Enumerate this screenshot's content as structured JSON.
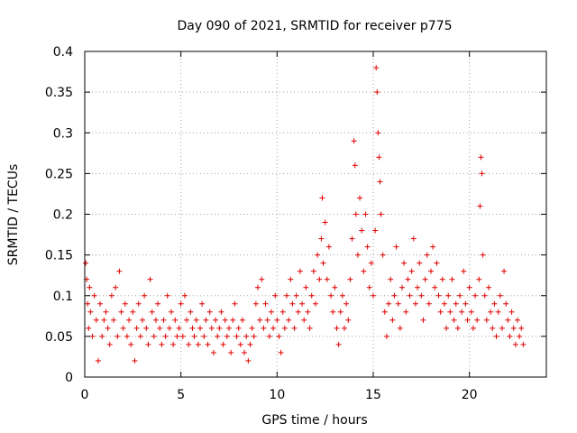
{
  "chart_data": {
    "type": "scatter",
    "title": "Day 090 of 2021, SRMTID for receiver p775",
    "xlabel": "GPS time / hours",
    "ylabel": "SRMTID / TECUs",
    "xlim": [
      0,
      24
    ],
    "ylim": [
      0,
      0.4
    ],
    "x_ticks": [
      "0",
      "5",
      "10",
      "15",
      "20"
    ],
    "y_ticks": [
      "0",
      "0.05",
      "0.1",
      "0.15",
      "0.2",
      "0.25",
      "0.3",
      "0.35",
      "0.4"
    ],
    "grid": true,
    "marker": "+",
    "marker_color": "#e00000",
    "series": [
      {
        "name": "SRMTID",
        "points": [
          [
            0.05,
            0.14
          ],
          [
            0.1,
            0.12
          ],
          [
            0.15,
            0.09
          ],
          [
            0.2,
            0.06
          ],
          [
            0.25,
            0.11
          ],
          [
            0.3,
            0.08
          ],
          [
            0.4,
            0.05
          ],
          [
            0.5,
            0.1
          ],
          [
            0.6,
            0.07
          ],
          [
            0.7,
            0.02
          ],
          [
            0.8,
            0.09
          ],
          [
            0.9,
            0.05
          ],
          [
            1.0,
            0.07
          ],
          [
            1.1,
            0.08
          ],
          [
            1.2,
            0.06
          ],
          [
            1.3,
            0.04
          ],
          [
            1.4,
            0.1
          ],
          [
            1.5,
            0.07
          ],
          [
            1.6,
            0.11
          ],
          [
            1.7,
            0.05
          ],
          [
            1.8,
            0.13
          ],
          [
            1.9,
            0.08
          ],
          [
            2.0,
            0.06
          ],
          [
            2.1,
            0.09
          ],
          [
            2.2,
            0.05
          ],
          [
            2.3,
            0.07
          ],
          [
            2.4,
            0.04
          ],
          [
            2.5,
            0.08
          ],
          [
            2.6,
            0.02
          ],
          [
            2.7,
            0.06
          ],
          [
            2.8,
            0.09
          ],
          [
            2.9,
            0.05
          ],
          [
            3.0,
            0.07
          ],
          [
            3.1,
            0.1
          ],
          [
            3.2,
            0.06
          ],
          [
            3.3,
            0.04
          ],
          [
            3.4,
            0.12
          ],
          [
            3.5,
            0.08
          ],
          [
            3.6,
            0.05
          ],
          [
            3.7,
            0.07
          ],
          [
            3.8,
            0.09
          ],
          [
            3.9,
            0.06
          ],
          [
            4.0,
            0.04
          ],
          [
            4.1,
            0.07
          ],
          [
            4.2,
            0.05
          ],
          [
            4.3,
            0.1
          ],
          [
            4.4,
            0.06
          ],
          [
            4.5,
            0.08
          ],
          [
            4.6,
            0.04
          ],
          [
            4.7,
            0.07
          ],
          [
            4.8,
            0.05
          ],
          [
            4.9,
            0.06
          ],
          [
            5.0,
            0.09
          ],
          [
            5.1,
            0.05
          ],
          [
            5.2,
            0.1
          ],
          [
            5.3,
            0.07
          ],
          [
            5.4,
            0.04
          ],
          [
            5.5,
            0.08
          ],
          [
            5.6,
            0.06
          ],
          [
            5.7,
            0.05
          ],
          [
            5.8,
            0.07
          ],
          [
            5.9,
            0.04
          ],
          [
            6.0,
            0.06
          ],
          [
            6.1,
            0.09
          ],
          [
            6.2,
            0.05
          ],
          [
            6.3,
            0.07
          ],
          [
            6.4,
            0.04
          ],
          [
            6.5,
            0.08
          ],
          [
            6.6,
            0.06
          ],
          [
            6.7,
            0.03
          ],
          [
            6.8,
            0.07
          ],
          [
            6.9,
            0.05
          ],
          [
            7.0,
            0.06
          ],
          [
            7.1,
            0.08
          ],
          [
            7.2,
            0.04
          ],
          [
            7.3,
            0.07
          ],
          [
            7.4,
            0.05
          ],
          [
            7.5,
            0.06
          ],
          [
            7.6,
            0.03
          ],
          [
            7.7,
            0.07
          ],
          [
            7.8,
            0.09
          ],
          [
            7.9,
            0.05
          ],
          [
            8.0,
            0.06
          ],
          [
            8.1,
            0.04
          ],
          [
            8.2,
            0.07
          ],
          [
            8.3,
            0.03
          ],
          [
            8.4,
            0.05
          ],
          [
            8.5,
            0.02
          ],
          [
            8.6,
            0.04
          ],
          [
            8.7,
            0.06
          ],
          [
            8.8,
            0.05
          ],
          [
            8.9,
            0.09
          ],
          [
            9.0,
            0.11
          ],
          [
            9.1,
            0.07
          ],
          [
            9.2,
            0.12
          ],
          [
            9.3,
            0.06
          ],
          [
            9.4,
            0.09
          ],
          [
            9.5,
            0.07
          ],
          [
            9.6,
            0.05
          ],
          [
            9.7,
            0.08
          ],
          [
            9.8,
            0.06
          ],
          [
            9.9,
            0.1
          ],
          [
            10.0,
            0.07
          ],
          [
            10.1,
            0.05
          ],
          [
            10.2,
            0.03
          ],
          [
            10.3,
            0.08
          ],
          [
            10.4,
            0.06
          ],
          [
            10.5,
            0.1
          ],
          [
            10.6,
            0.07
          ],
          [
            10.7,
            0.12
          ],
          [
            10.8,
            0.09
          ],
          [
            10.9,
            0.06
          ],
          [
            11.0,
            0.1
          ],
          [
            11.1,
            0.08
          ],
          [
            11.2,
            0.13
          ],
          [
            11.3,
            0.09
          ],
          [
            11.4,
            0.07
          ],
          [
            11.5,
            0.11
          ],
          [
            11.6,
            0.08
          ],
          [
            11.7,
            0.06
          ],
          [
            11.8,
            0.1
          ],
          [
            11.9,
            0.13
          ],
          [
            12.0,
            0.09
          ],
          [
            12.1,
            0.15
          ],
          [
            12.2,
            0.12
          ],
          [
            12.3,
            0.17
          ],
          [
            12.35,
            0.22
          ],
          [
            12.4,
            0.14
          ],
          [
            12.5,
            0.19
          ],
          [
            12.6,
            0.12
          ],
          [
            12.7,
            0.16
          ],
          [
            12.8,
            0.1
          ],
          [
            12.9,
            0.08
          ],
          [
            13.0,
            0.11
          ],
          [
            13.1,
            0.06
          ],
          [
            13.2,
            0.04
          ],
          [
            13.3,
            0.08
          ],
          [
            13.4,
            0.1
          ],
          [
            13.5,
            0.06
          ],
          [
            13.6,
            0.09
          ],
          [
            13.7,
            0.07
          ],
          [
            13.8,
            0.12
          ],
          [
            13.9,
            0.17
          ],
          [
            14.0,
            0.29
          ],
          [
            14.05,
            0.26
          ],
          [
            14.1,
            0.2
          ],
          [
            14.2,
            0.15
          ],
          [
            14.3,
            0.22
          ],
          [
            14.4,
            0.18
          ],
          [
            14.5,
            0.13
          ],
          [
            14.6,
            0.2
          ],
          [
            14.7,
            0.16
          ],
          [
            14.8,
            0.11
          ],
          [
            14.9,
            0.14
          ],
          [
            15.0,
            0.1
          ],
          [
            15.1,
            0.18
          ],
          [
            15.15,
            0.38
          ],
          [
            15.2,
            0.35
          ],
          [
            15.25,
            0.3
          ],
          [
            15.3,
            0.27
          ],
          [
            15.35,
            0.24
          ],
          [
            15.4,
            0.2
          ],
          [
            15.5,
            0.15
          ],
          [
            15.6,
            0.08
          ],
          [
            15.7,
            0.05
          ],
          [
            15.8,
            0.09
          ],
          [
            15.9,
            0.12
          ],
          [
            16.0,
            0.07
          ],
          [
            16.1,
            0.1
          ],
          [
            16.2,
            0.16
          ],
          [
            16.3,
            0.09
          ],
          [
            16.4,
            0.06
          ],
          [
            16.5,
            0.11
          ],
          [
            16.6,
            0.14
          ],
          [
            16.7,
            0.08
          ],
          [
            16.8,
            0.12
          ],
          [
            16.9,
            0.1
          ],
          [
            17.0,
            0.13
          ],
          [
            17.1,
            0.17
          ],
          [
            17.2,
            0.09
          ],
          [
            17.3,
            0.11
          ],
          [
            17.4,
            0.14
          ],
          [
            17.5,
            0.1
          ],
          [
            17.6,
            0.07
          ],
          [
            17.7,
            0.12
          ],
          [
            17.8,
            0.15
          ],
          [
            17.9,
            0.09
          ],
          [
            18.0,
            0.13
          ],
          [
            18.1,
            0.16
          ],
          [
            18.2,
            0.11
          ],
          [
            18.3,
            0.14
          ],
          [
            18.4,
            0.1
          ],
          [
            18.5,
            0.08
          ],
          [
            18.6,
            0.12
          ],
          [
            18.7,
            0.09
          ],
          [
            18.8,
            0.06
          ],
          [
            18.9,
            0.1
          ],
          [
            19.0,
            0.08
          ],
          [
            19.1,
            0.12
          ],
          [
            19.2,
            0.07
          ],
          [
            19.3,
            0.09
          ],
          [
            19.4,
            0.06
          ],
          [
            19.5,
            0.1
          ],
          [
            19.6,
            0.08
          ],
          [
            19.7,
            0.13
          ],
          [
            19.8,
            0.09
          ],
          [
            19.9,
            0.07
          ],
          [
            20.0,
            0.11
          ],
          [
            20.1,
            0.08
          ],
          [
            20.2,
            0.06
          ],
          [
            20.3,
            0.1
          ],
          [
            20.4,
            0.07
          ],
          [
            20.5,
            0.12
          ],
          [
            20.55,
            0.21
          ],
          [
            20.6,
            0.27
          ],
          [
            20.65,
            0.25
          ],
          [
            20.7,
            0.15
          ],
          [
            20.8,
            0.1
          ],
          [
            20.9,
            0.07
          ],
          [
            21.0,
            0.11
          ],
          [
            21.1,
            0.08
          ],
          [
            21.2,
            0.06
          ],
          [
            21.3,
            0.09
          ],
          [
            21.4,
            0.05
          ],
          [
            21.5,
            0.08
          ],
          [
            21.6,
            0.1
          ],
          [
            21.7,
            0.06
          ],
          [
            21.8,
            0.13
          ],
          [
            21.9,
            0.09
          ],
          [
            22.0,
            0.07
          ],
          [
            22.1,
            0.05
          ],
          [
            22.2,
            0.08
          ],
          [
            22.3,
            0.06
          ],
          [
            22.4,
            0.04
          ],
          [
            22.5,
            0.07
          ],
          [
            22.6,
            0.05
          ],
          [
            22.7,
            0.06
          ],
          [
            22.8,
            0.04
          ]
        ]
      }
    ]
  }
}
